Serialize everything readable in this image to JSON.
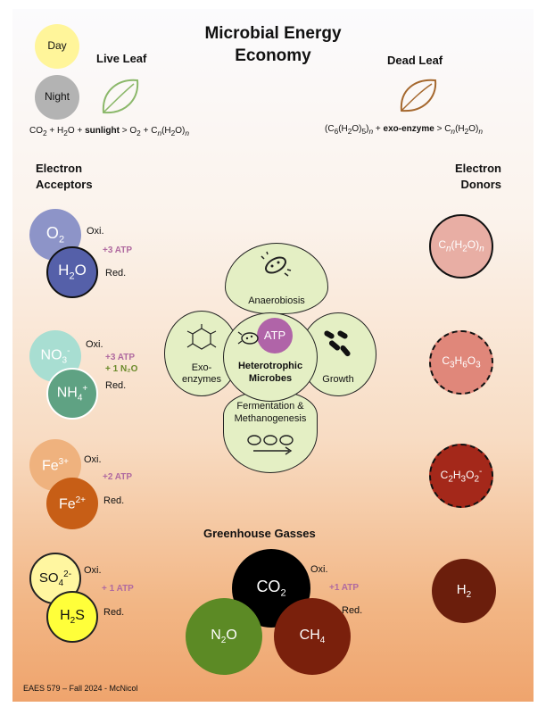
{
  "title_line1": "Microbial Energy",
  "title_line2": "Economy",
  "day": "Day",
  "night": "Night",
  "live_leaf": "Live Leaf",
  "dead_leaf": "Dead Leaf",
  "eq_left": {
    "a": "CO",
    "a_sub": "2",
    "b": " + H",
    "b_sub": "2",
    "c": "O + ",
    "sun": "sunlight",
    "d": " > O",
    "d_sub": "2",
    "e": " + C",
    "n": "n",
    "f": "(H",
    "f_sub": "2",
    "g": "O)",
    "n2": "n"
  },
  "eq_right": {
    "a": "(C",
    "a_sub": "6",
    "b": "(H",
    "b_sub": "2",
    "c": "O)",
    "c_sub": "5",
    "d": ")",
    "n": "n",
    "e": " + ",
    "enz": "exo-enzyme",
    "f": " > C",
    "n2": "n",
    "g": "(H",
    "g_sub": "2",
    "h": "O)",
    "n3": "n"
  },
  "acceptors_l1": "Electron",
  "acceptors_l2": "Acceptors",
  "donors_l1": "Electron",
  "donors_l2": "Donors",
  "oxi": "Oxi.",
  "red": "Red.",
  "acceptors": {
    "o2": {
      "main": "O",
      "sub": "2",
      "color": "#8d94c8"
    },
    "h2o": {
      "main": "H",
      "sub": "2",
      "tail": "O",
      "color": "#5560a9"
    },
    "atp1": "+3 ATP",
    "no3": {
      "main": "NO",
      "sub": "3",
      "sup": "-",
      "color": "#a8ded2"
    },
    "nh4": {
      "main": "NH",
      "sub": "4",
      "sup": "+",
      "color": "#5fa283"
    },
    "atp2": "+3 ATP",
    "n2o_gain": "+ 1 N₂O",
    "fe3": {
      "main": "Fe",
      "sup": "3+",
      "color": "#efb27e"
    },
    "fe2": {
      "main": "Fe",
      "sup": "2+",
      "color": "#c75e16"
    },
    "atp3": "+2 ATP",
    "so4": {
      "main": "SO",
      "sub": "4",
      "sup": "2-",
      "color": "#fff6a0"
    },
    "h2s": {
      "main": "H",
      "sub": "2",
      "tail": "S",
      "color": "#ffff3a"
    },
    "atp4": "+ 1 ATP"
  },
  "donors": {
    "d1": {
      "main": "C",
      "n": "n",
      "mid": "(H",
      "sub": "2",
      "tail": "O)",
      "n2": "n",
      "color": "#e8aea4"
    },
    "d2": {
      "main": "C",
      "sub1": "3",
      "mid": "H",
      "sub2": "6",
      "tail": "O",
      "sub3": "3",
      "color": "#e0877a"
    },
    "d3": {
      "main": "C",
      "sub1": "2",
      "mid": "H",
      "sub2": "3",
      "tail": "O",
      "sub3": "2",
      "sup": "-",
      "color": "#a4281a"
    },
    "d4": {
      "main": "H",
      "sub": "2",
      "color": "#6b1e0c"
    }
  },
  "flower": {
    "top": "Anaerobiosis",
    "left_l1": "Exo-",
    "left_l2": "enzymes",
    "right": "Growth",
    "bottom_l1": "Fermentation &",
    "bottom_l2": "Methanogenesis",
    "center_l1": "Heterotrophic",
    "center_l2": "Microbes",
    "atp": "ATP"
  },
  "greenhouse": {
    "title": "Greenhouse Gasses",
    "co2": {
      "main": "CO",
      "sub": "2",
      "color": "#000000"
    },
    "n2o": {
      "main": "N",
      "sub": "2",
      "tail": "O",
      "color": "#5c8a25"
    },
    "ch4": {
      "main": "CH",
      "sub": "4",
      "color": "#7a200c"
    },
    "oxi": "Oxi.",
    "atp": "+1 ATP",
    "red": "Red."
  },
  "footer": "EAES 579 – Fall 2024 - McNicol"
}
